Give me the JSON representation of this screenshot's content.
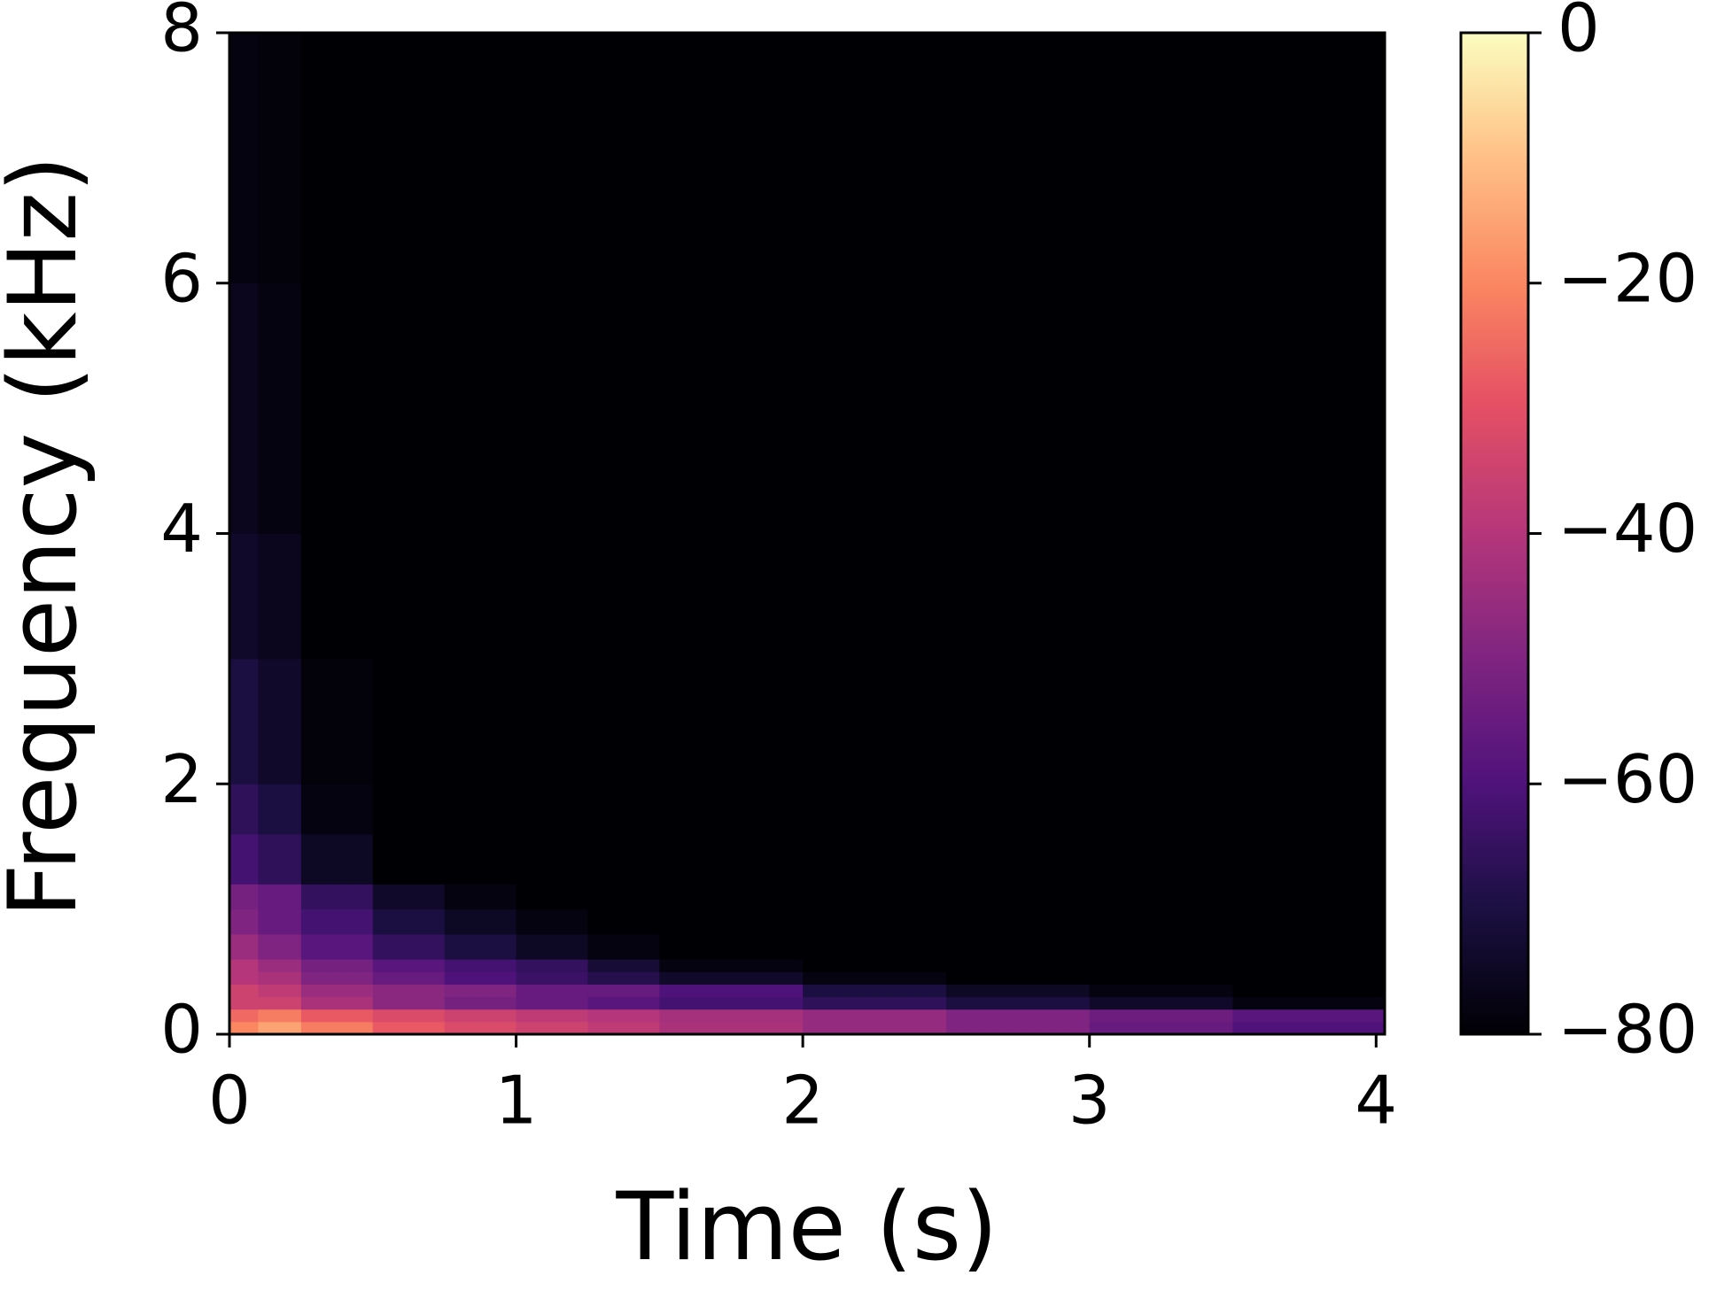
{
  "chart_data": {
    "type": "heatmap",
    "xlabel": "Time (s)",
    "ylabel": "Frequency (kHz)",
    "x_bins": [
      0,
      0.1,
      0.25,
      0.5,
      0.75,
      1,
      1.25,
      1.5,
      2,
      2.5,
      3,
      3.5,
      4.03
    ],
    "y_bins": [
      0,
      0.1,
      0.2,
      0.3,
      0.4,
      0.5,
      0.6,
      0.8,
      1,
      1.2,
      1.6,
      2,
      3,
      4,
      6,
      8
    ],
    "z": [
      [
        -20,
        -15,
        -22,
        -28,
        -32,
        -35,
        -38,
        -42,
        -46,
        -50,
        -55,
        -60
      ],
      [
        -25,
        -22,
        -28,
        -32,
        -35,
        -38,
        -40,
        -43,
        -46,
        -50,
        -54,
        -58
      ],
      [
        -35,
        -35,
        -42,
        -48,
        -52,
        -55,
        -58,
        -62,
        -66,
        -70,
        -74,
        -78
      ],
      [
        -35,
        -38,
        -45,
        -48,
        -50,
        -55,
        -55,
        -60,
        -70,
        -75,
        -78,
        -80
      ],
      [
        -40,
        -42,
        -50,
        -55,
        -60,
        -64,
        -68,
        -74,
        -78,
        -80,
        -80,
        -80
      ],
      [
        -40,
        -45,
        -52,
        -58,
        -62,
        -65,
        -72,
        -78,
        -80,
        -80,
        -80,
        -80
      ],
      [
        -45,
        -50,
        -58,
        -65,
        -70,
        -75,
        -78,
        -80,
        -80,
        -80,
        -80,
        -80
      ],
      [
        -50,
        -55,
        -62,
        -70,
        -75,
        -78,
        -80,
        -80,
        -80,
        -80,
        -80,
        -80
      ],
      [
        -52,
        -55,
        -65,
        -74,
        -78,
        -80,
        -80,
        -80,
        -80,
        -80,
        -80,
        -80
      ],
      [
        -62,
        -66,
        -75,
        -80,
        -80,
        -80,
        -80,
        -80,
        -80,
        -80,
        -80,
        -80
      ],
      [
        -66,
        -70,
        -78,
        -80,
        -80,
        -80,
        -80,
        -80,
        -80,
        -80,
        -80,
        -80
      ],
      [
        -70,
        -74,
        -79,
        -80,
        -80,
        -80,
        -80,
        -80,
        -80,
        -80,
        -80,
        -80
      ],
      [
        -74,
        -76,
        -80,
        -80,
        -80,
        -80,
        -80,
        -80,
        -80,
        -80,
        -80,
        -80
      ],
      [
        -76,
        -78,
        -80,
        -80,
        -80,
        -80,
        -80,
        -80,
        -80,
        -80,
        -80,
        -80
      ],
      [
        -78,
        -79,
        -80,
        -80,
        -80,
        -80,
        -80,
        -80,
        -80,
        -80,
        -80,
        -80
      ]
    ],
    "xlim": [
      0,
      4.03
    ],
    "ylim": [
      0,
      8
    ],
    "xticks": [
      0,
      1,
      2,
      3,
      4
    ],
    "yticks": [
      0,
      2,
      4,
      6,
      8
    ],
    "colormap": "magma",
    "clim": [
      -80,
      0
    ],
    "cticks": [
      0,
      {
        "value": -20,
        "label": "−20"
      },
      {
        "value": -40,
        "label": "−40"
      },
      {
        "value": -60,
        "label": "−60"
      },
      {
        "value": -80,
        "label": "−80"
      }
    ]
  }
}
